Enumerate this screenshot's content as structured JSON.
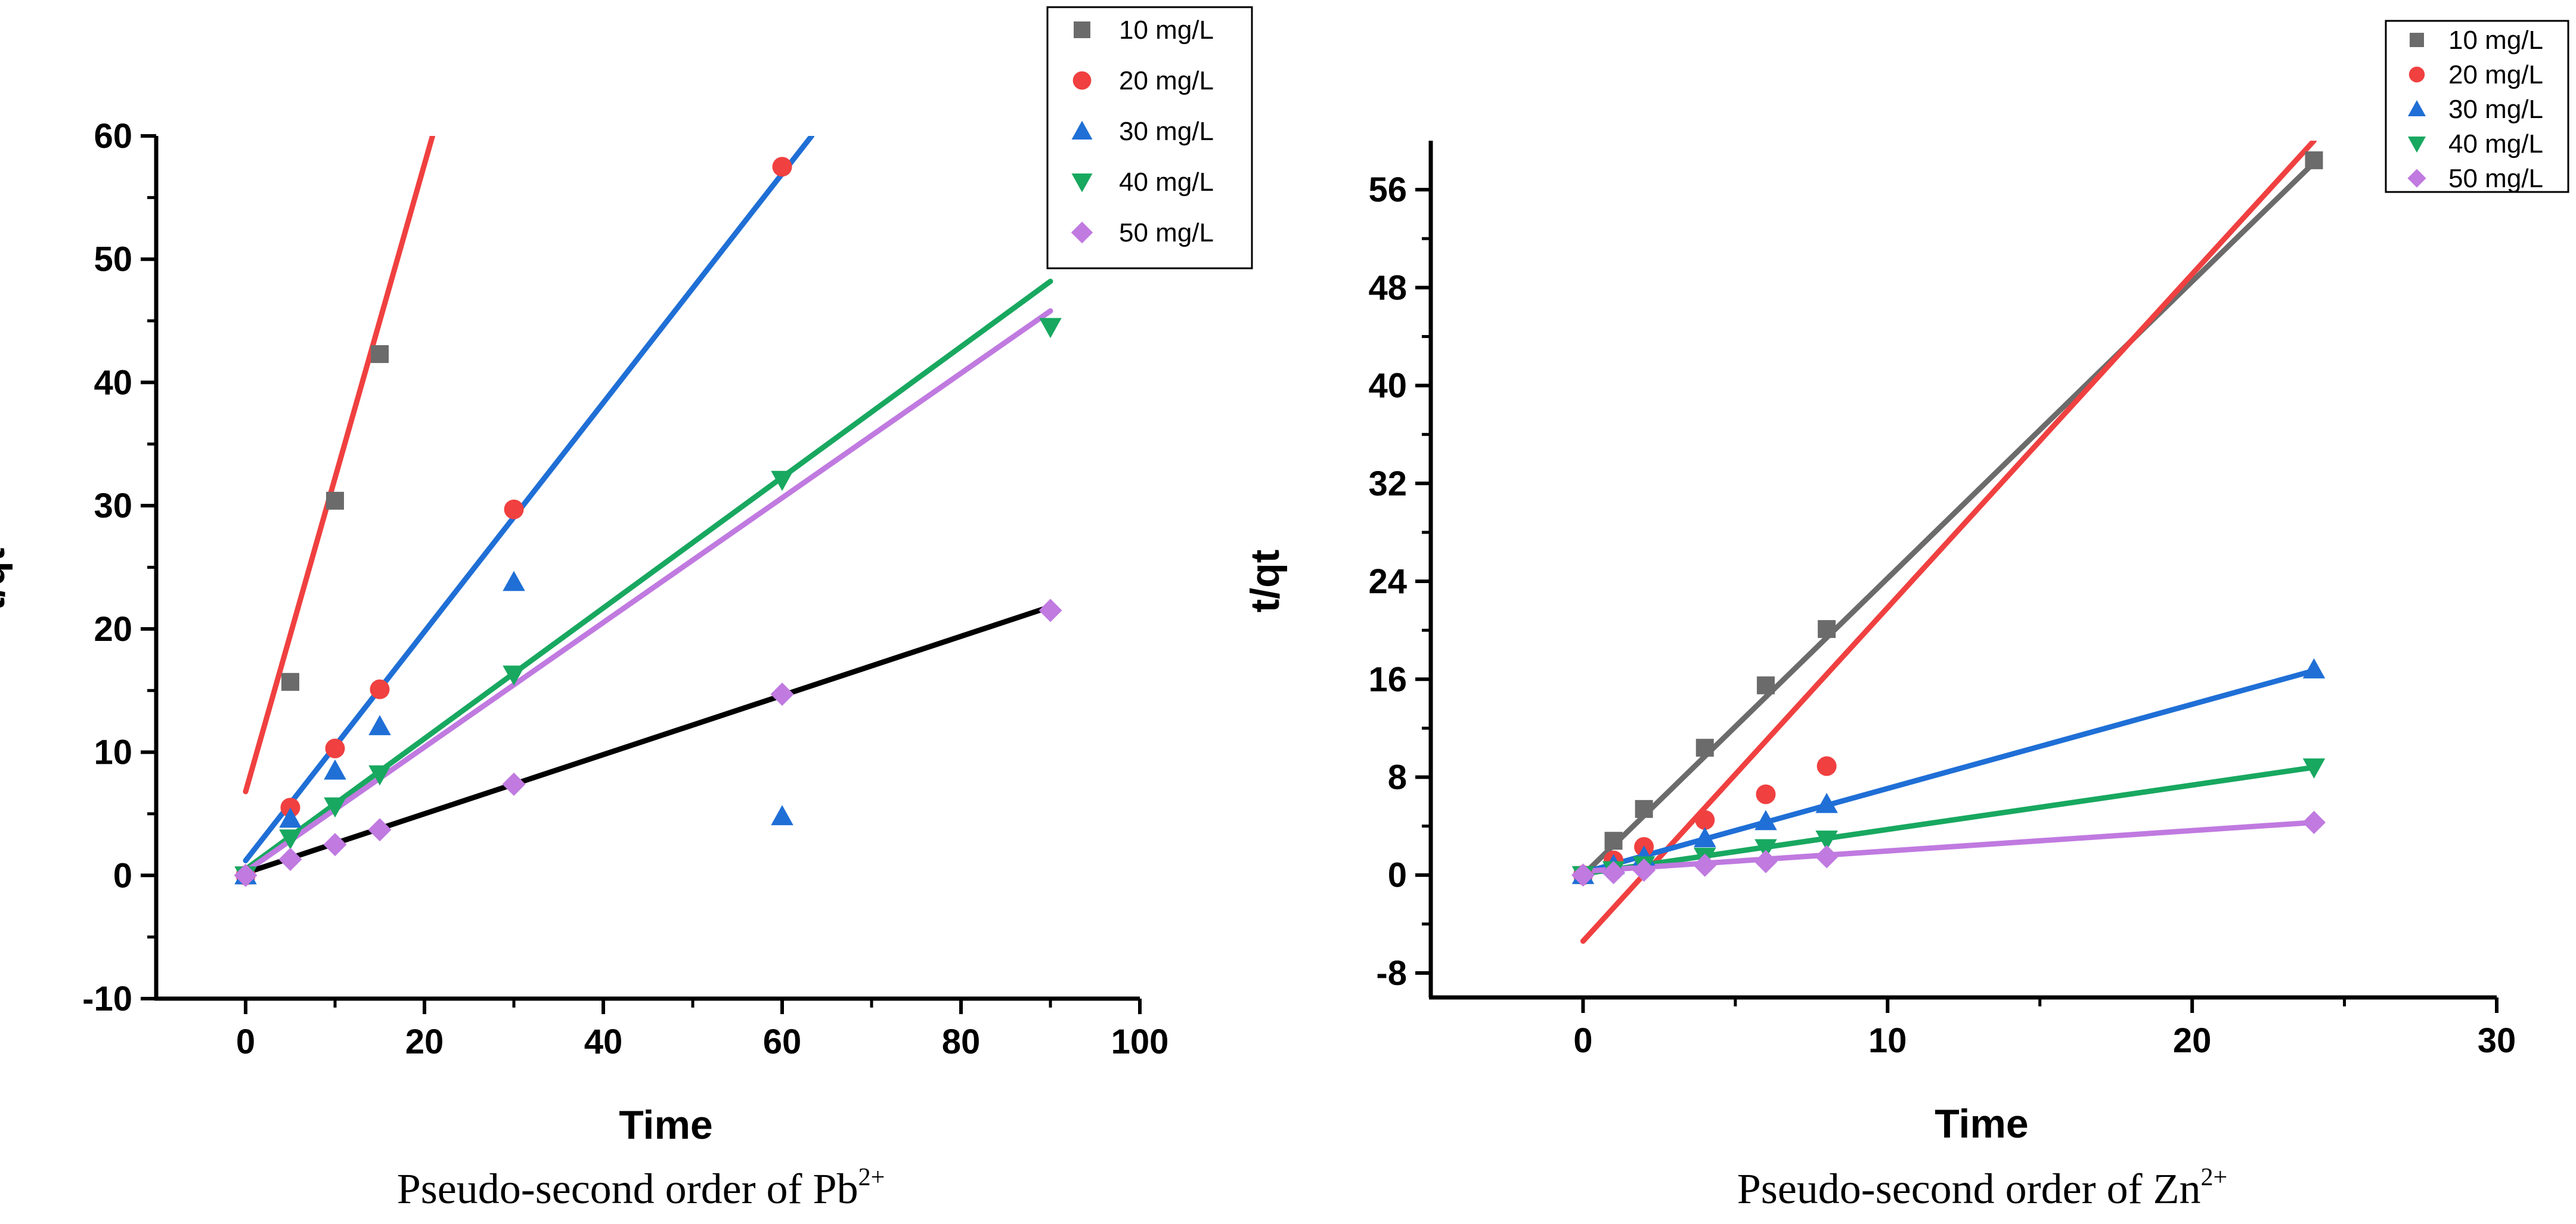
{
  "chart_data": [
    {
      "type": "scatter",
      "title": "",
      "caption": {
        "text": "Pseudo-second order of Pb",
        "superscript": "2+"
      },
      "xlabel": "Time",
      "ylabel": "t/qt",
      "xlim": [
        -10,
        100
      ],
      "ylim": [
        -10,
        60
      ],
      "xticks": [
        0,
        20,
        40,
        60,
        80,
        100
      ],
      "yticks": [
        -10,
        0,
        10,
        20,
        30,
        40,
        50,
        60
      ],
      "xtick_labels": [
        "0",
        "20",
        "40",
        "60",
        "80",
        "100"
      ],
      "ytick_labels": [
        "-10",
        "0",
        "10",
        "20",
        "30",
        "40",
        "50",
        "60"
      ],
      "grid": false,
      "legend_position": "top-right",
      "series": [
        {
          "name": "10 mg/L",
          "marker": "square",
          "color": "#6b6b6b",
          "points": [
            [
              0,
              0
            ],
            [
              5,
              15.7
            ],
            [
              10,
              30.4
            ],
            [
              15,
              42.3
            ]
          ]
        },
        {
          "name": "20 mg/L",
          "marker": "circle",
          "color": "#f04040",
          "points": [
            [
              0,
              0
            ],
            [
              5,
              5.5
            ],
            [
              10,
              10.3
            ],
            [
              15,
              15.1
            ],
            [
              30,
              29.7
            ],
            [
              60,
              57.5
            ]
          ]
        },
        {
          "name": "30 mg/L",
          "marker": "triangle-up",
          "color": "#1f6fd6",
          "points": [
            [
              0,
              0
            ],
            [
              5,
              4.6
            ],
            [
              10,
              8.5
            ],
            [
              15,
              12.1
            ],
            [
              30,
              23.8
            ],
            [
              60,
              4.8
            ]
          ]
        },
        {
          "name": "40 mg/L",
          "marker": "triangle-down",
          "color": "#18a860",
          "points": [
            [
              0,
              0
            ],
            [
              5,
              3.0
            ],
            [
              10,
              5.6
            ],
            [
              15,
              8.2
            ],
            [
              30,
              16.3
            ],
            [
              60,
              32.1
            ],
            [
              90,
              44.5
            ]
          ]
        },
        {
          "name": "50 mg/L",
          "marker": "diamond",
          "color": "#c07ae0",
          "points": [
            [
              0,
              0
            ],
            [
              5,
              1.3
            ],
            [
              10,
              2.5
            ],
            [
              15,
              3.7
            ],
            [
              30,
              7.4
            ],
            [
              60,
              14.7
            ],
            [
              90,
              21.5
            ]
          ]
        }
      ],
      "fit_lines": [
        {
          "color": "#f04040",
          "from": [
            0,
            6.8
          ],
          "to": [
            20.9,
            60
          ]
        },
        {
          "color": "#1f6fd6",
          "from": [
            0,
            1.2
          ],
          "to": [
            63.3,
            60
          ]
        },
        {
          "color": "#18a860",
          "from": [
            0,
            0.5
          ],
          "to": [
            90,
            48.2
          ]
        },
        {
          "color": "#c07ae0",
          "from": [
            0,
            0.3
          ],
          "to": [
            90,
            45.8
          ]
        },
        {
          "color": "#000000",
          "from": [
            0,
            0.2
          ],
          "to": [
            90,
            21.8
          ]
        }
      ]
    },
    {
      "type": "scatter",
      "title": "",
      "caption": {
        "text": "Pseudo-second order of Zn",
        "superscript": "2+"
      },
      "xlabel": "Time",
      "ylabel": "t/qt",
      "xlim": [
        -5,
        30
      ],
      "ylim": [
        -10,
        60
      ],
      "xticks": [
        0,
        10,
        20,
        30
      ],
      "yticks": [
        -8,
        0,
        8,
        16,
        24,
        32,
        40,
        48,
        56
      ],
      "xtick_labels": [
        "0",
        "10",
        "20",
        "30"
      ],
      "ytick_labels": [
        "-8",
        "0",
        "8",
        "16",
        "24",
        "32",
        "40",
        "48",
        "56"
      ],
      "grid": false,
      "legend_position": "top-right",
      "series": [
        {
          "name": "10 mg/L",
          "marker": "square",
          "color": "#6b6b6b",
          "points": [
            [
              0,
              0
            ],
            [
              1,
              2.8
            ],
            [
              2,
              5.4
            ],
            [
              4,
              10.4
            ],
            [
              6,
              15.5
            ],
            [
              8,
              20.1
            ],
            [
              24,
              58.4
            ]
          ]
        },
        {
          "name": "20 mg/L",
          "marker": "circle",
          "color": "#f04040",
          "points": [
            [
              0,
              0
            ],
            [
              1,
              1.2
            ],
            [
              2,
              2.3
            ],
            [
              4,
              4.5
            ],
            [
              6,
              6.6
            ],
            [
              8,
              8.9
            ]
          ]
        },
        {
          "name": "30 mg/L",
          "marker": "triangle-up",
          "color": "#1f6fd6",
          "points": [
            [
              0,
              0
            ],
            [
              1,
              0.8
            ],
            [
              2,
              1.5
            ],
            [
              4,
              3.0
            ],
            [
              6,
              4.4
            ],
            [
              8,
              5.8
            ],
            [
              24,
              16.8
            ]
          ]
        },
        {
          "name": "40 mg/L",
          "marker": "triangle-down",
          "color": "#18a860",
          "points": [
            [
              0,
              0
            ],
            [
              1,
              0.4
            ],
            [
              2,
              0.8
            ],
            [
              4,
              1.5
            ],
            [
              6,
              2.2
            ],
            [
              8,
              2.9
            ],
            [
              24,
              8.8
            ]
          ]
        },
        {
          "name": "50 mg/L",
          "marker": "diamond",
          "color": "#c07ae0",
          "points": [
            [
              0,
              0
            ],
            [
              1,
              0.2
            ],
            [
              2,
              0.4
            ],
            [
              4,
              0.8
            ],
            [
              6,
              1.1
            ],
            [
              8,
              1.5
            ],
            [
              24,
              4.3
            ]
          ]
        }
      ],
      "fit_lines": [
        {
          "color": "#6b6b6b",
          "from": [
            0,
            0
          ],
          "to": [
            24,
            58.2
          ]
        },
        {
          "color": "#f04040",
          "from": [
            0,
            -5.4
          ],
          "to": [
            24,
            60
          ]
        },
        {
          "color": "#1f6fd6",
          "from": [
            0,
            0.2
          ],
          "to": [
            24,
            16.7
          ]
        },
        {
          "color": "#18a860",
          "from": [
            0,
            0.1
          ],
          "to": [
            24,
            8.8
          ]
        },
        {
          "color": "#c07ae0",
          "from": [
            0,
            0.3
          ],
          "to": [
            24,
            4.3
          ]
        }
      ]
    }
  ]
}
